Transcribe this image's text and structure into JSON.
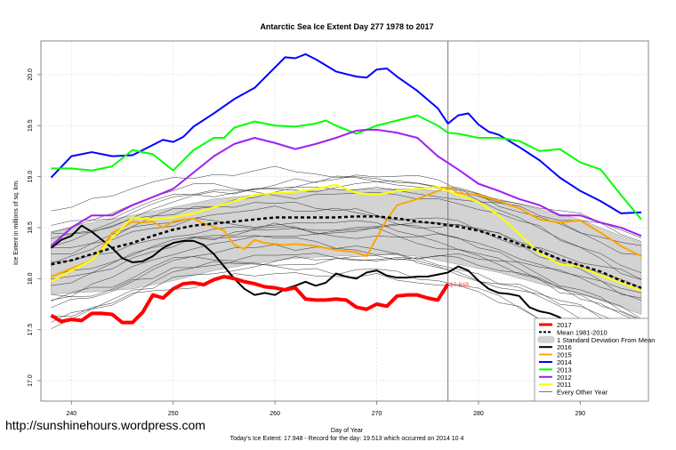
{
  "website": "http://sunshinehours.wordpress.com",
  "chart_data": {
    "type": "line",
    "title": "Antarctic Sea Ice Extent Day 277 1978 to 2017",
    "xlabel": "Day of Year",
    "ylabel": "Ice Extent in millions of sq. km.",
    "subtitle": "Today's Ice Extent: 17.948  - Record for the day: 19.513 which occurred on 2014 10 4",
    "xlim": [
      237,
      296.7
    ],
    "ylim": [
      16.8,
      20.33
    ],
    "x_ticks": [
      240,
      250,
      260,
      270,
      280,
      290
    ],
    "y_ticks": [
      17.0,
      17.5,
      18.0,
      18.5,
      19.0,
      19.5,
      20.0
    ],
    "y_tick_labels": [
      "17.0",
      "17.5",
      "18.0",
      "18.5",
      "19.0",
      "19.5",
      "20.0"
    ],
    "grid": true,
    "current_day": 277,
    "annotation": {
      "text": "17.948",
      "x": 277,
      "y": 17.948,
      "color": "#ff4040"
    },
    "legend_position": "bottom-right",
    "legend": [
      {
        "label": "2017",
        "color": "#ff0000",
        "style": "thick"
      },
      {
        "label": "Mean 1981-2010",
        "color": "#000000",
        "style": "dashed"
      },
      {
        "label": "1 Standard Deviation From Mean",
        "color": "#d3d3d3",
        "style": "band"
      },
      {
        "label": "2016",
        "color": "#000000",
        "style": "solid"
      },
      {
        "label": "2015",
        "color": "#ffa500",
        "style": "solid"
      },
      {
        "label": "2014",
        "color": "#0000ff",
        "style": "solid"
      },
      {
        "label": "2013",
        "color": "#00ff00",
        "style": "solid"
      },
      {
        "label": "2012",
        "color": "#a020f0",
        "style": "solid"
      },
      {
        "label": "2011",
        "color": "#ffff00",
        "style": "solid"
      },
      {
        "label": "Every Other Year",
        "color": "#555555",
        "style": "thin"
      }
    ],
    "band": {
      "x": [
        238,
        242,
        246,
        250,
        254,
        258,
        262,
        266,
        270,
        274,
        278,
        282,
        286,
        290,
        294,
        296
      ],
      "upper": [
        18.45,
        18.55,
        18.62,
        18.7,
        18.78,
        18.82,
        18.86,
        18.87,
        18.88,
        18.88,
        18.84,
        18.78,
        18.68,
        18.58,
        18.42,
        18.35
      ],
      "lower": [
        17.85,
        17.87,
        17.9,
        17.98,
        18.08,
        18.15,
        18.2,
        18.22,
        18.24,
        18.22,
        18.14,
        18.06,
        17.95,
        17.85,
        17.72,
        17.65
      ]
    },
    "series": [
      {
        "name": "Mean 1981-2010",
        "color": "#000000",
        "style": "dashed",
        "x": [
          238,
          240,
          242,
          244,
          246,
          248,
          250,
          252,
          254,
          256,
          258,
          260,
          262,
          264,
          266,
          268,
          270,
          272,
          274,
          276,
          278,
          280,
          282,
          284,
          286,
          288,
          290,
          292,
          294,
          296
        ],
        "y": [
          18.14,
          18.18,
          18.24,
          18.3,
          18.35,
          18.42,
          18.48,
          18.52,
          18.54,
          18.56,
          18.58,
          18.6,
          18.6,
          18.6,
          18.6,
          18.61,
          18.61,
          18.59,
          18.56,
          18.54,
          18.51,
          18.47,
          18.41,
          18.34,
          18.27,
          18.19,
          18.13,
          18.07,
          17.98,
          17.91
        ]
      },
      {
        "name": "2016",
        "color": "#000000",
        "style": "solid",
        "x": [
          238,
          239,
          240,
          241,
          242,
          243,
          244,
          245,
          246,
          247,
          248,
          249,
          250,
          251,
          252,
          253,
          254,
          255,
          256,
          257,
          258,
          259,
          260,
          261,
          262,
          263,
          264,
          265,
          266,
          267,
          268,
          269,
          270,
          271,
          272,
          273,
          274,
          275,
          276,
          277,
          278,
          279,
          280,
          281,
          282,
          283,
          284,
          285,
          286,
          287,
          288,
          289,
          290,
          291,
          292,
          293,
          294,
          295,
          296
        ],
        "y": [
          18.3,
          18.38,
          18.42,
          18.52,
          18.46,
          18.38,
          18.3,
          18.2,
          18.16,
          18.17,
          18.22,
          18.3,
          18.35,
          18.37,
          18.37,
          18.33,
          18.24,
          18.12,
          18.0,
          17.9,
          17.84,
          17.86,
          17.84,
          17.9,
          17.93,
          17.97,
          17.93,
          17.96,
          18.05,
          18.02,
          18.0,
          18.06,
          18.08,
          18.03,
          18.01,
          18.01,
          18.02,
          18.02,
          18.04,
          18.06,
          18.12,
          18.08,
          17.98,
          17.9,
          17.86,
          17.85,
          17.83,
          17.72,
          17.68,
          17.66,
          17.62,
          17.52,
          17.45,
          17.38,
          17.27,
          17.19,
          17.14,
          17.12,
          17.1
        ]
      },
      {
        "name": "2015",
        "color": "#ffa500",
        "style": "solid",
        "x": [
          238,
          240,
          242,
          243,
          244,
          245,
          246,
          247,
          248,
          249,
          250,
          251,
          252,
          253,
          254,
          255,
          256,
          257,
          258,
          259,
          260,
          261,
          262,
          264,
          266,
          268,
          269,
          270,
          271,
          272,
          274,
          276,
          277,
          278,
          280,
          282,
          284,
          286,
          288,
          290,
          292,
          294,
          296
        ],
        "y": [
          18.02,
          18.1,
          18.18,
          18.3,
          18.45,
          18.5,
          18.56,
          18.55,
          18.56,
          18.5,
          18.56,
          18.58,
          18.59,
          18.54,
          18.51,
          18.47,
          18.33,
          18.29,
          18.38,
          18.35,
          18.34,
          18.33,
          18.34,
          18.32,
          18.28,
          18.26,
          18.22,
          18.4,
          18.58,
          18.72,
          18.78,
          18.86,
          18.9,
          18.84,
          18.82,
          18.76,
          18.69,
          18.58,
          18.55,
          18.57,
          18.45,
          18.32,
          18.22
        ]
      },
      {
        "name": "2014",
        "color": "#0000ff",
        "style": "solid",
        "x": [
          238,
          240,
          242,
          244,
          246,
          248,
          249,
          250,
          251,
          252,
          254,
          256,
          258,
          260,
          261,
          262,
          263,
          264,
          266,
          268,
          269,
          270,
          271,
          272,
          274,
          276,
          277,
          278,
          279,
          280,
          281,
          282,
          284,
          286,
          288,
          290,
          292,
          294,
          296
        ],
        "y": [
          18.99,
          19.2,
          19.24,
          19.2,
          19.21,
          19.31,
          19.36,
          19.34,
          19.39,
          19.49,
          19.62,
          19.76,
          19.87,
          20.07,
          20.17,
          20.16,
          20.2,
          20.15,
          20.03,
          19.98,
          19.97,
          20.05,
          20.06,
          19.98,
          19.84,
          19.67,
          19.52,
          19.6,
          19.62,
          19.51,
          19.44,
          19.41,
          19.29,
          19.16,
          18.99,
          18.86,
          18.76,
          18.64,
          18.65
        ]
      },
      {
        "name": "2013",
        "color": "#00ff00",
        "style": "solid",
        "x": [
          238,
          240,
          242,
          244,
          246,
          248,
          250,
          252,
          253,
          254,
          255,
          256,
          258,
          260,
          262,
          264,
          265,
          266,
          268,
          270,
          272,
          274,
          276,
          277,
          278,
          280,
          282,
          284,
          286,
          288,
          290,
          292,
          294,
          296
        ],
        "y": [
          19.08,
          19.08,
          19.06,
          19.1,
          19.26,
          19.22,
          19.06,
          19.26,
          19.32,
          19.38,
          19.38,
          19.48,
          19.54,
          19.5,
          19.49,
          19.52,
          19.55,
          19.5,
          19.42,
          19.5,
          19.55,
          19.6,
          19.5,
          19.43,
          19.42,
          19.38,
          19.38,
          19.35,
          19.25,
          19.27,
          19.14,
          19.07,
          18.82,
          18.58
        ]
      },
      {
        "name": "2012",
        "color": "#a020f0",
        "style": "solid",
        "x": [
          238,
          240,
          242,
          244,
          246,
          248,
          250,
          252,
          254,
          256,
          258,
          260,
          262,
          264,
          266,
          268,
          269,
          270,
          272,
          274,
          276,
          278,
          280,
          282,
          284,
          286,
          288,
          290,
          292,
          294,
          296
        ],
        "y": [
          18.32,
          18.5,
          18.62,
          18.62,
          18.72,
          18.8,
          18.88,
          19.04,
          19.2,
          19.32,
          19.38,
          19.33,
          19.27,
          19.32,
          19.38,
          19.45,
          19.46,
          19.46,
          19.43,
          19.38,
          19.2,
          19.07,
          18.93,
          18.86,
          18.78,
          18.72,
          18.62,
          18.62,
          18.55,
          18.5,
          18.42
        ]
      },
      {
        "name": "2011",
        "color": "#ffff00",
        "style": "solid",
        "x": [
          238,
          240,
          242,
          244,
          246,
          248,
          250,
          252,
          254,
          256,
          258,
          260,
          262,
          264,
          266,
          268,
          270,
          272,
          274,
          276,
          278,
          280,
          282,
          284,
          286,
          288,
          290,
          292,
          294,
          296
        ],
        "y": [
          17.97,
          18.08,
          18.18,
          18.4,
          18.6,
          18.58,
          18.6,
          18.64,
          18.7,
          18.76,
          18.82,
          18.84,
          18.85,
          18.88,
          18.92,
          18.84,
          18.82,
          18.86,
          18.88,
          18.9,
          18.82,
          18.75,
          18.62,
          18.44,
          18.25,
          18.14,
          18.12,
          18.03,
          17.96,
          17.88
        ]
      },
      {
        "name": "2017",
        "color": "#ff0000",
        "style": "thick",
        "x": [
          238,
          239,
          240,
          241,
          242,
          243,
          244,
          245,
          246,
          247,
          248,
          249,
          250,
          251,
          252,
          253,
          254,
          255,
          256,
          257,
          258,
          259,
          260,
          261,
          262,
          263,
          264,
          265,
          266,
          267,
          268,
          269,
          270,
          271,
          272,
          273,
          274,
          275,
          276,
          277
        ],
        "y": [
          17.64,
          17.58,
          17.6,
          17.59,
          17.66,
          17.66,
          17.65,
          17.57,
          17.57,
          17.67,
          17.84,
          17.81,
          17.9,
          17.95,
          17.96,
          17.94,
          17.99,
          18.02,
          18.0,
          17.97,
          17.95,
          17.92,
          17.91,
          17.89,
          17.91,
          17.8,
          17.79,
          17.79,
          17.8,
          17.79,
          17.72,
          17.7,
          17.75,
          17.73,
          17.83,
          17.84,
          17.84,
          17.81,
          17.79,
          17.948
        ]
      }
    ]
  }
}
